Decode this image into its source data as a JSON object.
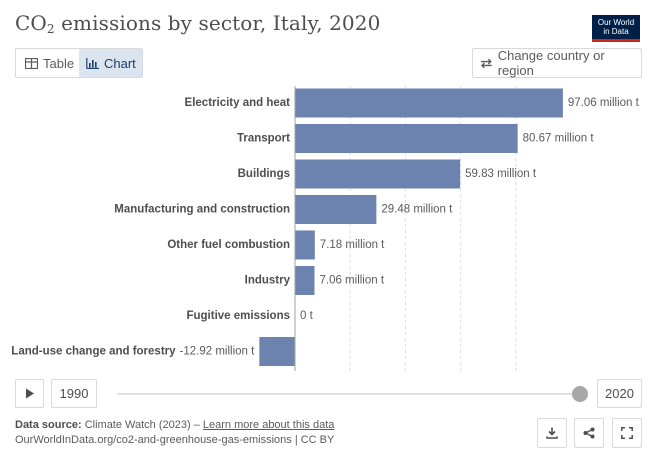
{
  "header": {
    "title_main": "CO",
    "title_sub": "2",
    "title_rest": " emissions by sector, Italy, 2020",
    "logo_line1": "Our World",
    "logo_line2": "in Data"
  },
  "tabs": [
    {
      "label": "Table",
      "icon": "table-icon",
      "active": false
    },
    {
      "label": "Chart",
      "icon": "chart-icon",
      "active": true
    }
  ],
  "change_country_label": "Change country or region",
  "colors": {
    "bar": "#6c83b0",
    "accent_tab": "#dbe5f0",
    "logo_bg": "#002147",
    "logo_stripe": "#ce261e"
  },
  "chart_data": {
    "type": "bar",
    "orientation": "horizontal",
    "unit": "million t",
    "categories": [
      "Electricity and heat",
      "Transport",
      "Buildings",
      "Manufacturing and construction",
      "Other fuel combustion",
      "Industry",
      "Fugitive emissions",
      "Land-use change and forestry"
    ],
    "values": [
      97.06,
      80.67,
      59.83,
      29.48,
      7.18,
      7.06,
      0,
      -12.92
    ],
    "labels": [
      "97.06 million t",
      "80.67 million t",
      "59.83 million t",
      "29.48 million t",
      "7.18 million t",
      "7.06 million t",
      "0 t",
      "-12.92 million t"
    ],
    "xlim": [
      -12.92,
      97.06
    ],
    "grid": true
  },
  "timeline": {
    "start_year": "1990",
    "end_year": "2020",
    "position": 1.0
  },
  "footer": {
    "source_label": "Data source:",
    "source_text": " Climate Watch (2023) – ",
    "source_link": "Learn more about this data",
    "url_line": "OurWorldInData.org/co2-and-greenhouse-gas-emissions | CC BY"
  },
  "actions": [
    {
      "name": "download-icon"
    },
    {
      "name": "share-icon"
    },
    {
      "name": "fullscreen-icon"
    }
  ]
}
